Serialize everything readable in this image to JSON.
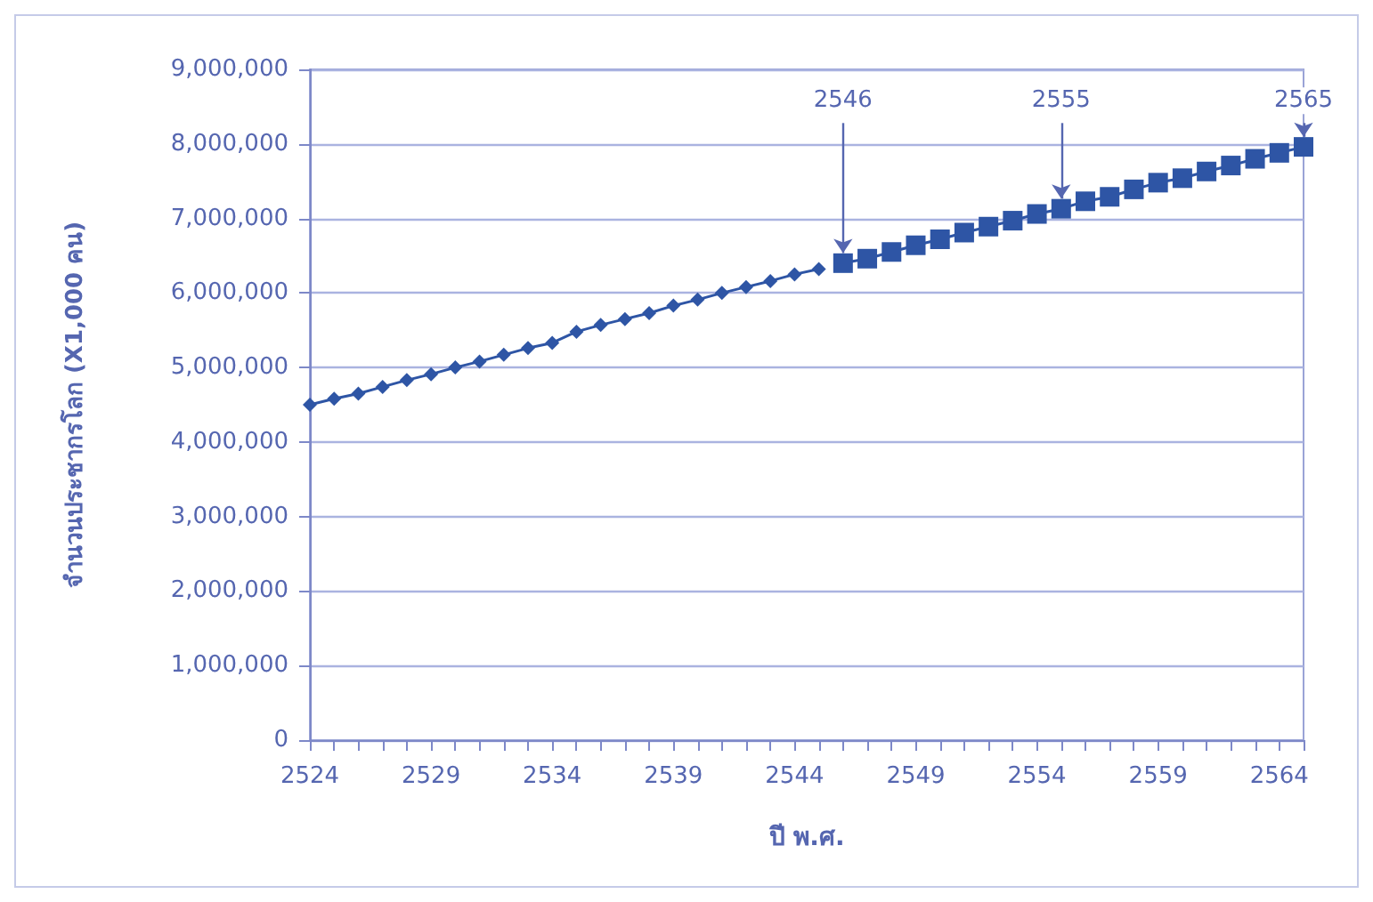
{
  "chart_data": {
    "type": "line",
    "xlabel": "ปี พ.ศ.",
    "ylabel": "จำนวนประชากรโลก (X1,000 คน)",
    "xlim": [
      2524,
      2565
    ],
    "xticks": [
      2524,
      2529,
      2534,
      2539,
      2544,
      2549,
      2554,
      2559,
      2564
    ],
    "ylim": [
      0,
      9000000
    ],
    "yticks": [
      0,
      {
        "value": 1000000,
        "label": "1,000,000"
      },
      {
        "value": 2000000,
        "label": "2,000,000"
      },
      {
        "value": 3000000,
        "label": "3,000,000"
      },
      {
        "value": 4000000,
        "label": "4,000,000"
      },
      {
        "value": 5000000,
        "label": "5,000,000"
      },
      {
        "value": 6000000,
        "label": "6,000,000"
      },
      {
        "value": 7000000,
        "label": "7,000,000"
      },
      {
        "value": 8000000,
        "label": "8,000,000"
      },
      {
        "value": 9000000,
        "label": "9,000,000"
      }
    ],
    "grid": "y",
    "series": [
      {
        "color": "#2e55a5",
        "marker": "diamond",
        "x": [
          2524,
          2525,
          2526,
          2527,
          2528,
          2529,
          2530,
          2531,
          2532,
          2533,
          2534,
          2535,
          2536,
          2537,
          2538,
          2539,
          2540,
          2541,
          2542,
          2543,
          2544,
          2545
        ],
        "values": [
          4500000,
          4580000,
          4650000,
          4740000,
          4830000,
          4910000,
          5000000,
          5080000,
          5170000,
          5260000,
          5330000,
          5480000,
          5570000,
          5650000,
          5730000,
          5830000,
          5910000,
          6000000,
          6080000,
          6160000,
          6250000,
          6320000
        ]
      },
      {
        "color": "#2e55a5",
        "marker": "square",
        "x": [
          2546,
          2547,
          2548,
          2549,
          2550,
          2551,
          2552,
          2553,
          2554,
          2555,
          2556,
          2557,
          2558,
          2559,
          2560,
          2561,
          2562,
          2563,
          2564,
          2565
        ],
        "values": [
          6400000,
          6460000,
          6550000,
          6640000,
          6720000,
          6810000,
          6890000,
          6970000,
          7060000,
          7130000,
          7230000,
          7290000,
          7390000,
          7480000,
          7540000,
          7630000,
          7710000,
          7800000,
          7880000,
          7960000
        ]
      }
    ],
    "annotations": [
      {
        "text": "2546",
        "x": 2546,
        "y": 6400000
      },
      {
        "text": "2555",
        "x": 2555,
        "y": 7130000
      },
      {
        "text": "2565",
        "x": 2565,
        "y": 7960000
      }
    ]
  }
}
